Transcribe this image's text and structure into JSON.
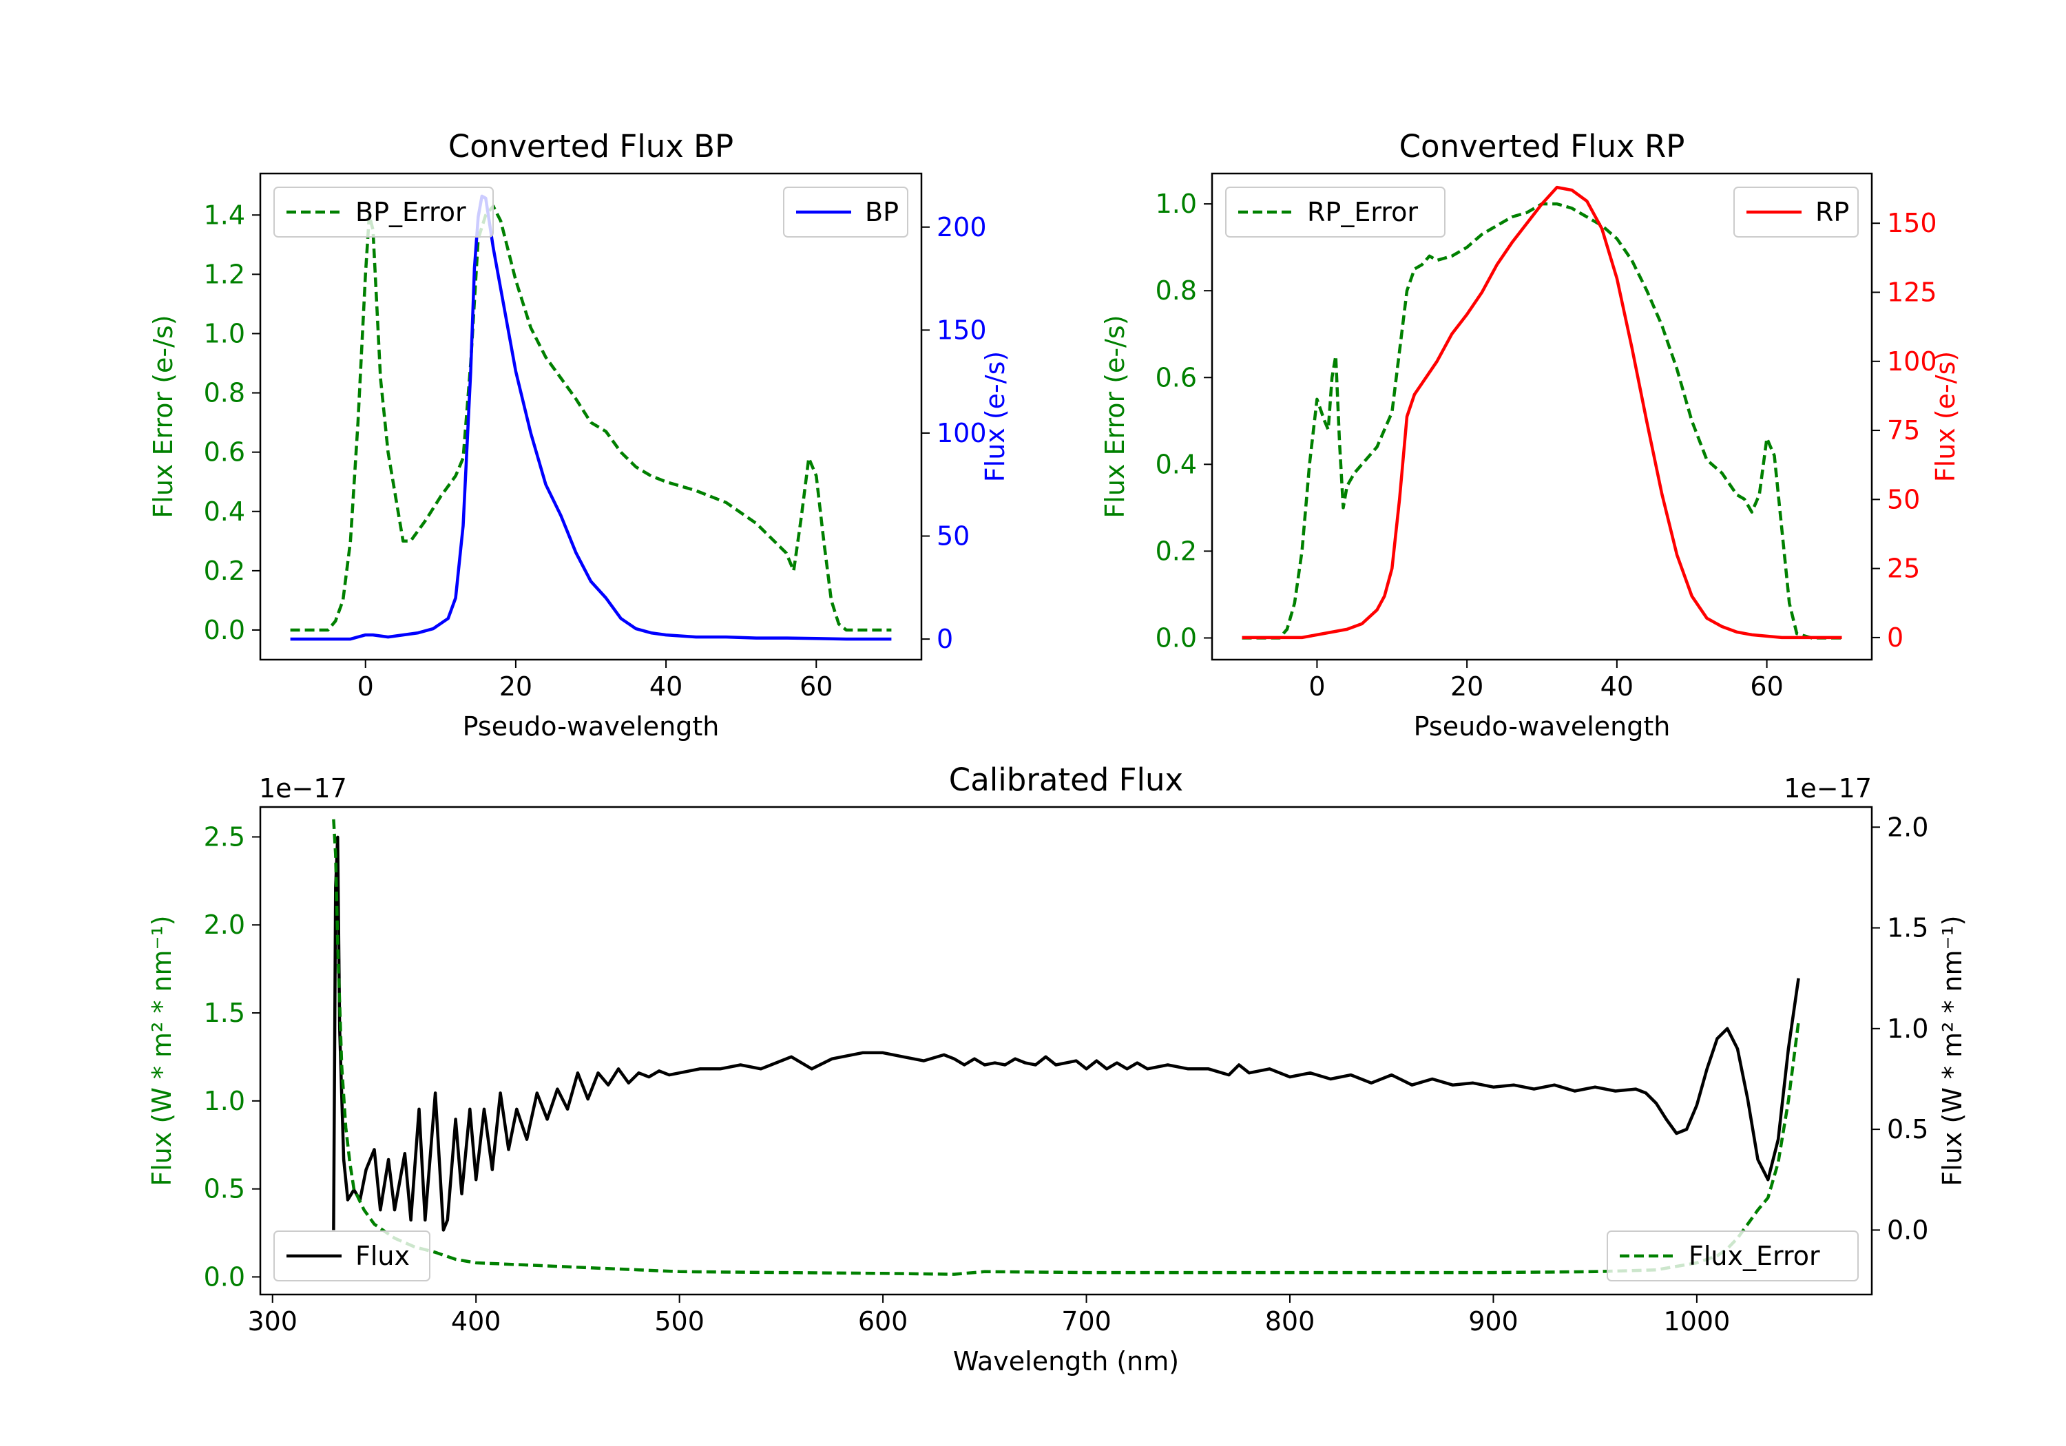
{
  "chart_data": [
    {
      "id": "bp",
      "type": "line",
      "title": "Converted Flux BP",
      "xlabel": "Pseudo-wavelength",
      "ylabel_left": "Flux Error (e-/s)",
      "ylabel_right": "Flux (e-/s)",
      "xlim": [
        -14,
        74
      ],
      "ylim_left": [
        -0.1,
        1.54
      ],
      "ylim_right": [
        -10,
        226
      ],
      "xticks": [
        0,
        20,
        40,
        60
      ],
      "yticks_left": [
        0.0,
        0.2,
        0.4,
        0.6,
        0.8,
        1.0,
        1.2,
        1.4
      ],
      "yticks_right": [
        0,
        50,
        100,
        150,
        200
      ],
      "left_color": "#008000",
      "right_color": "#0000ff",
      "legend_left": "BP_Error",
      "legend_right": "BP",
      "series": [
        {
          "name": "BP_Error",
          "axis": "left",
          "style": "dashed",
          "color": "#008000",
          "x": [
            -10,
            -5,
            -4,
            -3,
            -2,
            -1,
            0,
            0.5,
            1,
            2,
            3,
            4,
            5,
            6,
            8,
            10,
            12,
            13,
            14,
            15,
            16,
            17,
            18,
            20,
            22,
            24,
            26,
            28,
            30,
            32,
            34,
            36,
            38,
            40,
            44,
            48,
            52,
            56,
            57,
            58,
            59,
            60,
            61,
            62,
            63,
            64,
            66,
            70
          ],
          "y": [
            0,
            0,
            0.03,
            0.1,
            0.3,
            0.7,
            1.2,
            1.4,
            1.35,
            0.85,
            0.6,
            0.45,
            0.3,
            0.3,
            0.37,
            0.45,
            0.52,
            0.58,
            0.9,
            1.32,
            1.4,
            1.43,
            1.38,
            1.18,
            1.02,
            0.92,
            0.85,
            0.78,
            0.7,
            0.67,
            0.6,
            0.55,
            0.52,
            0.5,
            0.47,
            0.43,
            0.36,
            0.26,
            0.2,
            0.38,
            0.58,
            0.52,
            0.3,
            0.1,
            0.02,
            0,
            0,
            0
          ]
        },
        {
          "name": "BP",
          "axis": "right",
          "style": "solid",
          "color": "#0000ff",
          "x": [
            -10,
            -2,
            0,
            1,
            3,
            5,
            7,
            9,
            11,
            12,
            13,
            14,
            14.5,
            15,
            15.5,
            16,
            17,
            18,
            19,
            20,
            22,
            24,
            26,
            28,
            30,
            32,
            34,
            36,
            38,
            40,
            44,
            48,
            52,
            56,
            60,
            64,
            70
          ],
          "y": [
            0,
            0,
            2,
            2,
            1,
            2,
            3,
            5,
            10,
            20,
            55,
            130,
            180,
            205,
            215,
            214,
            190,
            170,
            150,
            130,
            100,
            75,
            60,
            42,
            28,
            20,
            10,
            5,
            3,
            2,
            1,
            1,
            0.5,
            0.5,
            0.3,
            0,
            0
          ]
        }
      ]
    },
    {
      "id": "rp",
      "type": "line",
      "title": "Converted Flux RP",
      "xlabel": "Pseudo-wavelength",
      "ylabel_left": "Flux Error (e-/s)",
      "ylabel_right": "Flux (e-/s)",
      "xlim": [
        -14,
        74
      ],
      "ylim_left": [
        -0.05,
        1.07
      ],
      "ylim_right": [
        -8,
        168
      ],
      "xticks": [
        0,
        20,
        40,
        60
      ],
      "yticks_left": [
        0.0,
        0.2,
        0.4,
        0.6,
        0.8,
        1.0
      ],
      "yticks_right": [
        0,
        25,
        50,
        75,
        100,
        125,
        150
      ],
      "left_color": "#008000",
      "right_color": "#ff0000",
      "legend_left": "RP_Error",
      "legend_right": "RP",
      "series": [
        {
          "name": "RP_Error",
          "axis": "left",
          "style": "dashed",
          "color": "#008000",
          "x": [
            -10,
            -5,
            -4,
            -3,
            -2,
            -1,
            0,
            1,
            1.5,
            2,
            2.5,
            3,
            3.5,
            4,
            5,
            6,
            8,
            10,
            12,
            13,
            14,
            15,
            16,
            18,
            20,
            22,
            24,
            26,
            28,
            30,
            32,
            34,
            36,
            38,
            40,
            42,
            44,
            46,
            48,
            50,
            52,
            54,
            56,
            57,
            58,
            59,
            60,
            61,
            62,
            63,
            64,
            66,
            70
          ],
          "y": [
            0,
            0,
            0.02,
            0.08,
            0.2,
            0.4,
            0.55,
            0.5,
            0.48,
            0.6,
            0.65,
            0.45,
            0.3,
            0.35,
            0.38,
            0.4,
            0.44,
            0.52,
            0.8,
            0.85,
            0.86,
            0.88,
            0.87,
            0.88,
            0.9,
            0.93,
            0.95,
            0.97,
            0.98,
            1.0,
            1.0,
            0.99,
            0.97,
            0.95,
            0.92,
            0.87,
            0.8,
            0.72,
            0.62,
            0.5,
            0.41,
            0.38,
            0.33,
            0.32,
            0.29,
            0.33,
            0.46,
            0.42,
            0.25,
            0.08,
            0.01,
            0,
            0
          ]
        },
        {
          "name": "RP",
          "axis": "right",
          "style": "solid",
          "color": "#ff0000",
          "x": [
            -10,
            -2,
            0,
            2,
            4,
            6,
            8,
            9,
            10,
            11,
            12,
            13,
            14,
            16,
            18,
            20,
            22,
            24,
            26,
            28,
            30,
            32,
            34,
            36,
            38,
            40,
            42,
            44,
            46,
            48,
            50,
            52,
            54,
            56,
            58,
            60,
            62,
            64,
            70
          ],
          "y": [
            0,
            0,
            1,
            2,
            3,
            5,
            10,
            15,
            25,
            50,
            80,
            88,
            92,
            100,
            110,
            117,
            125,
            135,
            143,
            150,
            157,
            163,
            162,
            158,
            148,
            130,
            105,
            78,
            52,
            30,
            15,
            7,
            4,
            2,
            1,
            0.5,
            0,
            0,
            0
          ]
        }
      ]
    },
    {
      "id": "cal",
      "type": "line",
      "title": "Calibrated Flux",
      "xlabel": "Wavelength (nm)",
      "ylabel_left": "Flux (W * m² * nm⁻¹)",
      "ylabel_right": "Flux (W * m² * nm⁻¹)",
      "offset_left": "1e−17",
      "offset_right": "1e−17",
      "xlim": [
        294,
        1086
      ],
      "ylim_left": [
        -0.1,
        2.67
      ],
      "ylim_right": [
        -0.32,
        2.1
      ],
      "xticks": [
        300,
        400,
        500,
        600,
        700,
        800,
        900,
        1000
      ],
      "yticks_left": [
        0.0,
        0.5,
        1.0,
        1.5,
        2.0,
        2.5
      ],
      "yticks_right": [
        0.0,
        0.5,
        1.0,
        1.5,
        2.0
      ],
      "left_color": "#008000",
      "right_color": "#000000",
      "legend_left": "Flux",
      "legend_right": "Flux_Error",
      "series": [
        {
          "name": "Flux",
          "axis": "right",
          "style": "solid",
          "color": "#000000",
          "x": [
            330,
            331,
            332,
            333,
            335,
            337,
            340,
            343,
            346,
            350,
            353,
            357,
            360,
            365,
            368,
            372,
            375,
            380,
            384,
            386,
            390,
            393,
            397,
            400,
            404,
            408,
            412,
            416,
            420,
            425,
            430,
            435,
            440,
            445,
            450,
            455,
            460,
            465,
            470,
            475,
            480,
            485,
            490,
            495,
            500,
            510,
            520,
            530,
            540,
            545,
            555,
            565,
            575,
            590,
            600,
            610,
            620,
            630,
            635,
            640,
            645,
            650,
            655,
            660,
            665,
            670,
            675,
            680,
            685,
            690,
            695,
            700,
            705,
            710,
            715,
            720,
            725,
            730,
            740,
            750,
            760,
            770,
            775,
            780,
            790,
            800,
            810,
            820,
            830,
            840,
            850,
            860,
            870,
            880,
            890,
            900,
            910,
            920,
            930,
            940,
            950,
            960,
            970,
            975,
            980,
            985,
            990,
            995,
            1000,
            1005,
            1010,
            1015,
            1020,
            1025,
            1030,
            1035,
            1040,
            1045,
            1050
          ],
          "y": [
            0,
            1.7,
            1.95,
            1.0,
            0.35,
            0.15,
            0.2,
            0.15,
            0.3,
            0.4,
            0.1,
            0.35,
            0.1,
            0.38,
            0.05,
            0.6,
            0.05,
            0.68,
            0.0,
            0.05,
            0.55,
            0.18,
            0.6,
            0.25,
            0.6,
            0.3,
            0.68,
            0.4,
            0.6,
            0.45,
            0.68,
            0.55,
            0.7,
            0.6,
            0.78,
            0.65,
            0.78,
            0.72,
            0.8,
            0.73,
            0.78,
            0.76,
            0.79,
            0.77,
            0.78,
            0.8,
            0.8,
            0.82,
            0.8,
            0.82,
            0.86,
            0.8,
            0.85,
            0.88,
            0.88,
            0.86,
            0.84,
            0.87,
            0.85,
            0.82,
            0.85,
            0.82,
            0.83,
            0.82,
            0.85,
            0.83,
            0.82,
            0.86,
            0.82,
            0.83,
            0.84,
            0.8,
            0.84,
            0.8,
            0.83,
            0.8,
            0.83,
            0.8,
            0.82,
            0.8,
            0.8,
            0.77,
            0.82,
            0.78,
            0.8,
            0.76,
            0.78,
            0.75,
            0.77,
            0.73,
            0.77,
            0.72,
            0.75,
            0.72,
            0.73,
            0.71,
            0.72,
            0.7,
            0.72,
            0.69,
            0.71,
            0.69,
            0.7,
            0.68,
            0.63,
            0.55,
            0.48,
            0.5,
            0.62,
            0.8,
            0.95,
            1.0,
            0.9,
            0.65,
            0.35,
            0.25,
            0.45,
            0.9,
            1.25
          ]
        },
        {
          "name": "Flux_Error",
          "axis": "left",
          "style": "dashed",
          "color": "#008000",
          "x": [
            330,
            331,
            332,
            334,
            336,
            338,
            340,
            345,
            350,
            360,
            370,
            380,
            390,
            400,
            420,
            440,
            460,
            480,
            500,
            550,
            600,
            635,
            640,
            650,
            700,
            750,
            800,
            850,
            900,
            950,
            980,
            1000,
            1010,
            1015,
            1020,
            1025,
            1030,
            1035,
            1040,
            1045,
            1050
          ],
          "y": [
            2.6,
            2.4,
            1.9,
            1.2,
            0.85,
            0.65,
            0.5,
            0.38,
            0.3,
            0.22,
            0.17,
            0.14,
            0.1,
            0.08,
            0.07,
            0.06,
            0.05,
            0.04,
            0.03,
            0.025,
            0.02,
            0.015,
            0.02,
            0.03,
            0.025,
            0.025,
            0.025,
            0.025,
            0.025,
            0.03,
            0.04,
            0.08,
            0.12,
            0.16,
            0.22,
            0.3,
            0.38,
            0.45,
            0.65,
            1.0,
            1.45
          ]
        }
      ]
    }
  ]
}
